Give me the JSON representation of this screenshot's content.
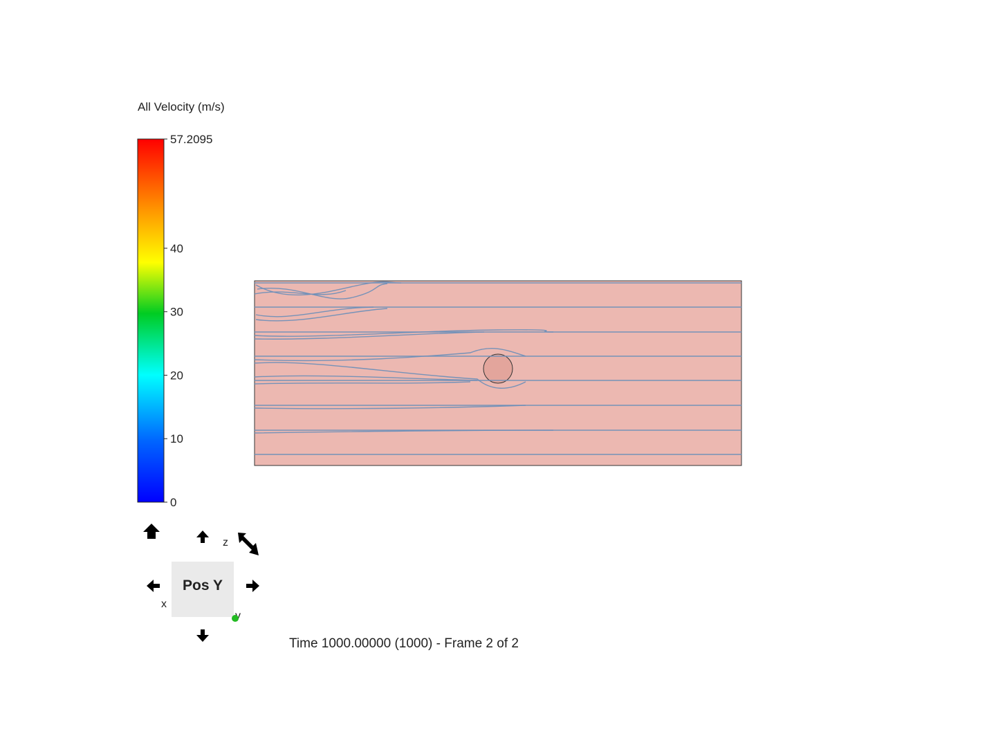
{
  "legend": {
    "title": "All Velocity (m/s)",
    "range": [
      0,
      57.2095
    ],
    "ticks": [
      0,
      10,
      20,
      30,
      40,
      57.2095
    ]
  },
  "view_cube": {
    "face": "Pos Y",
    "axes": [
      "z",
      "x",
      "y"
    ]
  },
  "status": "Time 1000.00000 (1000) - Frame 2 of 2"
}
